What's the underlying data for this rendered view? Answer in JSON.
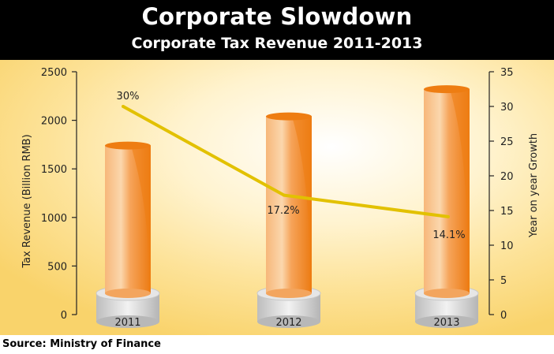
{
  "title": "Corporate Slowdown",
  "subtitle": "Corporate Tax Revenue 2011-2013",
  "source": "Source: Ministry of Finance",
  "colors": {
    "bar_dark": "#ee7d12",
    "bar_light": "#f9c892",
    "line": "#e2c100",
    "header_bg": "#000000",
    "plot_bg": "#fde39a"
  },
  "chart_data": {
    "type": "bar",
    "categories": [
      "2011",
      "2012",
      "2013"
    ],
    "series": [
      {
        "values": [
          1740,
          2040,
          2320
        ]
      },
      {
        "values": [
          30,
          17.2,
          14.1
        ],
        "labels": [
          "30%",
          "17.2%",
          "14.1%"
        ],
        "type": "line"
      }
    ],
    "ylabel": "Tax Revenue (Billion RMB)",
    "ylim": [
      0,
      2500
    ],
    "yticks": [
      0,
      500,
      1000,
      1500,
      2000,
      2500
    ],
    "y2label": "Year on year Growth",
    "y2lim": [
      0,
      35
    ],
    "y2ticks": [
      0,
      5,
      10,
      15,
      20,
      25,
      30,
      35
    ],
    "grid": false
  }
}
